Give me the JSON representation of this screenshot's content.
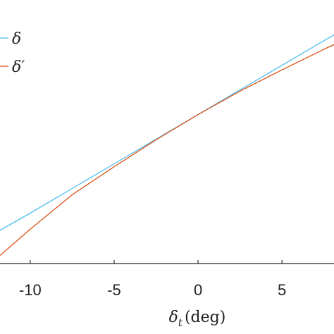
{
  "chart_data": {
    "type": "line",
    "title": "",
    "xlabel": "δt (deg)",
    "xlabel_main": "δ",
    "xlabel_sub": "t",
    "xlabel_unit": "(deg)",
    "ylabel": "",
    "xlim": [
      -11.8,
      8.1
    ],
    "ylim": [
      -13,
      10
    ],
    "xticks": [
      -10,
      -5,
      0,
      5
    ],
    "xtick_labels": [
      "-10",
      "-5",
      "0",
      "5"
    ],
    "grid": false,
    "legend_position": "top-left",
    "series": [
      {
        "name": "δ",
        "color": "#4DBEEE",
        "x": [
          -11.8,
          -10,
          -7.5,
          -5,
          -2.5,
          0,
          2.5,
          5,
          7.5,
          8.1
        ],
        "y": [
          -10.1,
          -8.6,
          -6.45,
          -4.3,
          -2.15,
          0,
          2.15,
          4.3,
          6.45,
          6.95
        ]
      },
      {
        "name": "δ′",
        "color": "#D95319",
        "x": [
          -11.8,
          -10,
          -7.5,
          -5,
          -2.5,
          0,
          2.5,
          5,
          7.5,
          8.1
        ],
        "y": [
          -12.3,
          -10.0,
          -7.0,
          -4.55,
          -2.2,
          0,
          2.05,
          3.9,
          5.7,
          6.1
        ]
      }
    ]
  }
}
